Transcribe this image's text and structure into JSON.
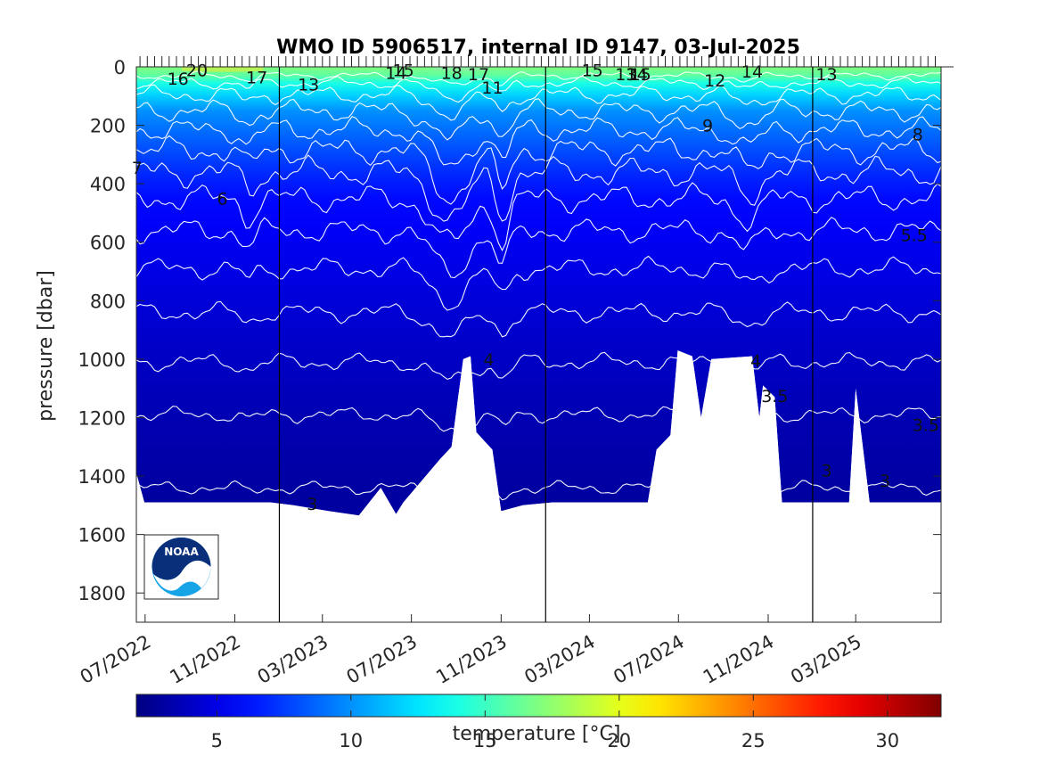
{
  "chart_data": {
    "type": "heatmap",
    "title": "WMO ID 5906517, internal ID 9147, 03-Jul-2025",
    "ylabel": "pressure [dbar]",
    "colorbar_label": "temperature [°C]",
    "y_axis": {
      "range": [
        0,
        1900
      ],
      "reversed": true,
      "ticks": [
        0,
        200,
        400,
        600,
        800,
        1000,
        1200,
        1400,
        1600,
        1800
      ]
    },
    "x_axis": {
      "range": [
        "2022-06-19",
        "2025-06-26"
      ],
      "ticks": [
        {
          "date": "2022-07-01",
          "label": "07/2022"
        },
        {
          "date": "2022-11-01",
          "label": "11/2022"
        },
        {
          "date": "2023-03-01",
          "label": "03/2023"
        },
        {
          "date": "2023-07-01",
          "label": "07/2023"
        },
        {
          "date": "2023-11-01",
          "label": "11/2023"
        },
        {
          "date": "2024-03-01",
          "label": "03/2024"
        },
        {
          "date": "2024-07-01",
          "label": "07/2024"
        },
        {
          "date": "2024-11-01",
          "label": "11/2024"
        },
        {
          "date": "2025-03-01",
          "label": "03/2025"
        }
      ]
    },
    "year_boundaries": [
      "2023-01-01",
      "2024-01-01",
      "2025-01-01"
    ],
    "colorbar": {
      "range": [
        2,
        32
      ],
      "ticks": [
        5,
        10,
        15,
        20,
        25,
        30
      ],
      "colormap": "jet"
    },
    "profile_max_depth": [
      {
        "date": "2022-06-19",
        "pressure": 1390
      },
      {
        "date": "2022-06-30",
        "pressure": 1490
      },
      {
        "date": "2022-12-20",
        "pressure": 1490
      },
      {
        "date": "2023-01-20",
        "pressure": 1500
      },
      {
        "date": "2023-03-10",
        "pressure": 1520
      },
      {
        "date": "2023-04-20",
        "pressure": 1535
      },
      {
        "date": "2023-05-20",
        "pressure": 1440
      },
      {
        "date": "2023-06-10",
        "pressure": 1530
      },
      {
        "date": "2023-06-20",
        "pressure": 1490
      },
      {
        "date": "2023-08-10",
        "pressure": 1340
      },
      {
        "date": "2023-08-25",
        "pressure": 1300
      },
      {
        "date": "2023-09-10",
        "pressure": 1000
      },
      {
        "date": "2023-09-20",
        "pressure": 990
      },
      {
        "date": "2023-09-28",
        "pressure": 1250
      },
      {
        "date": "2023-10-20",
        "pressure": 1310
      },
      {
        "date": "2023-11-01",
        "pressure": 1520
      },
      {
        "date": "2023-12-01",
        "pressure": 1500
      },
      {
        "date": "2024-01-10",
        "pressure": 1490
      },
      {
        "date": "2024-05-20",
        "pressure": 1490
      },
      {
        "date": "2024-06-01",
        "pressure": 1310
      },
      {
        "date": "2024-06-20",
        "pressure": 1260
      },
      {
        "date": "2024-06-30",
        "pressure": 970
      },
      {
        "date": "2024-07-20",
        "pressure": 990
      },
      {
        "date": "2024-08-01",
        "pressure": 1200
      },
      {
        "date": "2024-08-15",
        "pressure": 1000
      },
      {
        "date": "2024-10-10",
        "pressure": 990
      },
      {
        "date": "2024-10-20",
        "pressure": 1200
      },
      {
        "date": "2024-10-25",
        "pressure": 1090
      },
      {
        "date": "2024-11-10",
        "pressure": 1130
      },
      {
        "date": "2024-11-20",
        "pressure": 1490
      },
      {
        "date": "2025-02-20",
        "pressure": 1490
      },
      {
        "date": "2025-03-01",
        "pressure": 1100
      },
      {
        "date": "2025-03-20",
        "pressure": 1490
      },
      {
        "date": "2025-06-26",
        "pressure": 1490
      }
    ],
    "isotherms": [
      {
        "value": 16,
        "base": 30,
        "amp": 8,
        "dip_scale": 0.2
      },
      {
        "value": 14,
        "base": 55,
        "amp": 12,
        "dip_scale": 0.3
      },
      {
        "value": 12,
        "base": 95,
        "amp": 18,
        "dip_scale": 0.4
      },
      {
        "value": 10,
        "base": 150,
        "amp": 22,
        "dip_scale": 0.6
      },
      {
        "value": 9,
        "base": 215,
        "amp": 24,
        "dip_scale": 0.8
      },
      {
        "value": 8,
        "base": 285,
        "amp": 28,
        "dip_scale": 1.0
      },
      {
        "value": 7,
        "base": 360,
        "amp": 30,
        "dip_scale": 1.0
      },
      {
        "value": 6,
        "base": 450,
        "amp": 28,
        "dip_scale": 1.0
      },
      {
        "value": 5.5,
        "base": 560,
        "amp": 25,
        "dip_scale": 0.9
      },
      {
        "value": 5,
        "base": 690,
        "amp": 22,
        "dip_scale": 0.7
      },
      {
        "value": 4.5,
        "base": 840,
        "amp": 20,
        "dip_scale": 0.5
      },
      {
        "value": 4,
        "base": 1010,
        "amp": 18,
        "dip_scale": 0.4
      },
      {
        "value": 3.5,
        "base": 1190,
        "amp": 16,
        "dip_scale": 0.3
      },
      {
        "value": 3,
        "base": 1440,
        "amp": 14,
        "dip_scale": 0.2
      }
    ],
    "contour_labels": [
      {
        "text": "16",
        "date": "2022-08-15",
        "pressure": 40
      },
      {
        "text": "20",
        "date": "2022-09-10",
        "pressure": 10
      },
      {
        "text": "17",
        "date": "2022-12-01",
        "pressure": 35
      },
      {
        "text": "13",
        "date": "2023-02-10",
        "pressure": 60
      },
      {
        "text": "14",
        "date": "2023-06-10",
        "pressure": 20
      },
      {
        "text": "15",
        "date": "2023-06-20",
        "pressure": 10
      },
      {
        "text": "18",
        "date": "2023-08-25",
        "pressure": 20
      },
      {
        "text": "17",
        "date": "2023-10-01",
        "pressure": 25
      },
      {
        "text": "11",
        "date": "2023-10-20",
        "pressure": 70
      },
      {
        "text": "15",
        "date": "2024-03-05",
        "pressure": 10
      },
      {
        "text": "13",
        "date": "2024-04-20",
        "pressure": 25
      },
      {
        "text": "14",
        "date": "2024-05-05",
        "pressure": 25
      },
      {
        "text": "15",
        "date": "2024-05-10",
        "pressure": 25
      },
      {
        "text": "12",
        "date": "2024-08-20",
        "pressure": 45
      },
      {
        "text": "14",
        "date": "2024-10-10",
        "pressure": 15
      },
      {
        "text": "13",
        "date": "2025-01-20",
        "pressure": 25
      },
      {
        "text": "9",
        "date": "2024-08-10",
        "pressure": 200
      },
      {
        "text": "8",
        "date": "2025-05-25",
        "pressure": 230
      },
      {
        "text": "7",
        "date": "2022-06-20",
        "pressure": 345
      },
      {
        "text": "6",
        "date": "2022-10-15",
        "pressure": 450
      },
      {
        "text": "5.5",
        "date": "2025-05-20",
        "pressure": 575
      },
      {
        "text": "4",
        "date": "2023-10-15",
        "pressure": 1000
      },
      {
        "text": "4",
        "date": "2024-10-15",
        "pressure": 1005
      },
      {
        "text": "3.5",
        "date": "2024-11-10",
        "pressure": 1125
      },
      {
        "text": "3.5",
        "date": "2025-06-05",
        "pressure": 1225
      },
      {
        "text": "3",
        "date": "2023-02-15",
        "pressure": 1495
      },
      {
        "text": "3",
        "date": "2025-01-20",
        "pressure": 1380
      },
      {
        "text": "3",
        "date": "2025-04-10",
        "pressure": 1415
      }
    ],
    "logo": {
      "text": "NOAA",
      "colors": [
        "#0a2f7a",
        "#16a4e6",
        "#ffffff"
      ]
    }
  }
}
